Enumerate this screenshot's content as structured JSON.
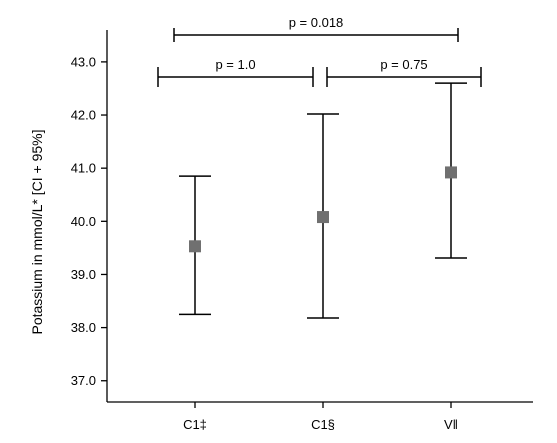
{
  "chart_data": {
    "type": "errorbar",
    "ylabel": "Potassium in mmol/L* [CI + 95%]",
    "ylim": [
      36.6,
      43.6
    ],
    "yticks": [
      "37.0",
      "38.0",
      "39.0",
      "40.0",
      "41.0",
      "42.0",
      "43.0"
    ],
    "categories": [
      "C1‡",
      "C1§",
      "V‖"
    ],
    "points": [
      {
        "mean": 39.53,
        "lower": 38.25,
        "upper": 40.85
      },
      {
        "mean": 40.08,
        "lower": 38.18,
        "upper": 42.02
      },
      {
        "mean": 40.92,
        "lower": 39.31,
        "upper": 42.6
      }
    ],
    "comparisons": [
      {
        "from": 0,
        "to": 1,
        "label": "p = 1.0"
      },
      {
        "from": 1,
        "to": 2,
        "label": "p = 0.75"
      },
      {
        "from": 0,
        "to": 2,
        "label": "p = 0.018"
      }
    ],
    "grid": false,
    "legend": "none",
    "marker_color": "#707070",
    "line_color": "#000000"
  }
}
